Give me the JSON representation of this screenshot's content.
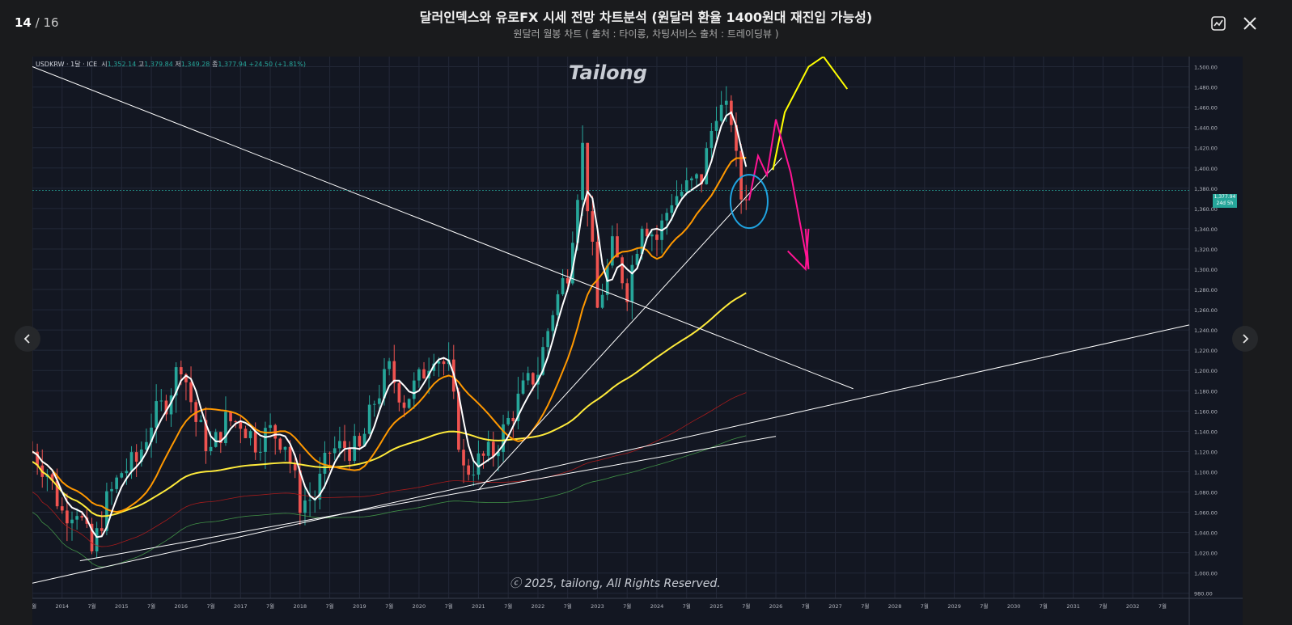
{
  "header": {
    "counter_current": "14",
    "counter_total": "/ 16",
    "title": "달러인덱스와 유로FX 시세 전망 차트분석 (원달러 환율 1400원대 재진입 가능성)",
    "subtitle": "원달러 월봉 차트 ( 출처 : 타이롱, 차팅서비스 출처 : 트레이딩뷰 )"
  },
  "icons": {
    "chart": "chart-image-icon",
    "close": "close-icon",
    "prev": "chevron-left-icon",
    "next": "chevron-right-icon"
  },
  "chart": {
    "symbol": "USDKRW · 1달 · ICE",
    "ohlc": {
      "o_label": "시",
      "o": "1,352.14",
      "h_label": "고",
      "h": "1,379.84",
      "l_label": "저",
      "l": "1,349.28",
      "c_label": "종",
      "c": "1,377.94",
      "change": "+24.50 (+1.81%)"
    },
    "watermark": "Tailong",
    "copyright": "ⓒ 2025, tailong, All Rights Reserved.",
    "last_price": "1,377.94",
    "countdown": "24d 5h",
    "colors": {
      "background": "#131722",
      "up": "#26a69a",
      "down": "#ef5350",
      "ma_fast": "#ffffff",
      "ma_mid": "#ff9800",
      "ma_slow": "#ffeb3b",
      "ma_red": "#b71c1c",
      "ma_green": "#4caf50",
      "projection_up": "#ffff00",
      "projection_down": "#ff1493",
      "highlight": "#1fa3e0"
    }
  },
  "chart_data": {
    "type": "candlestick",
    "y_ticks": [
      "1,500.00",
      "1,480.00",
      "1,460.00",
      "1,440.00",
      "1,420.00",
      "1,400.00",
      "1,380.00",
      "1,360.00",
      "1,340.00",
      "1,320.00",
      "1,300.00",
      "1,280.00",
      "1,260.00",
      "1,240.00",
      "1,220.00",
      "1,200.00",
      "1,180.00",
      "1,160.00",
      "1,140.00",
      "1,120.00",
      "1,100.00",
      "1,080.00",
      "1,060.00",
      "1,040.00",
      "1,020.00",
      "1,000.00",
      "980.00"
    ],
    "x_ticks": [
      {
        "t": 2013.5,
        "label": "7월"
      },
      {
        "t": 2014,
        "label": "2014"
      },
      {
        "t": 2014.5,
        "label": "7월"
      },
      {
        "t": 2015,
        "label": "2015"
      },
      {
        "t": 2015.5,
        "label": "7월"
      },
      {
        "t": 2016,
        "label": "2016"
      },
      {
        "t": 2016.5,
        "label": "7월"
      },
      {
        "t": 2017,
        "label": "2017"
      },
      {
        "t": 2017.5,
        "label": "7월"
      },
      {
        "t": 2018,
        "label": "2018"
      },
      {
        "t": 2018.5,
        "label": "7월"
      },
      {
        "t": 2019,
        "label": "2019"
      },
      {
        "t": 2019.5,
        "label": "7월"
      },
      {
        "t": 2020,
        "label": "2020"
      },
      {
        "t": 2020.5,
        "label": "7월"
      },
      {
        "t": 2021,
        "label": "2021"
      },
      {
        "t": 2021.5,
        "label": "7월"
      },
      {
        "t": 2022,
        "label": "2022"
      },
      {
        "t": 2022.5,
        "label": "7월"
      },
      {
        "t": 2023,
        "label": "2023"
      },
      {
        "t": 2023.5,
        "label": "7월"
      },
      {
        "t": 2024,
        "label": "2024"
      },
      {
        "t": 2024.5,
        "label": "7월"
      },
      {
        "t": 2025,
        "label": "2025"
      },
      {
        "t": 2025.5,
        "label": "7월"
      },
      {
        "t": 2026,
        "label": "2026"
      },
      {
        "t": 2026.5,
        "label": "7월"
      },
      {
        "t": 2027,
        "label": "2027"
      },
      {
        "t": 2027.5,
        "label": "7월"
      },
      {
        "t": 2028,
        "label": "2028"
      },
      {
        "t": 2028.5,
        "label": "7월"
      },
      {
        "t": 2029,
        "label": "2029"
      },
      {
        "t": 2029.5,
        "label": "7월"
      },
      {
        "t": 2030,
        "label": "2030"
      },
      {
        "t": 2030.5,
        "label": "7월"
      },
      {
        "t": 2031,
        "label": "2031"
      },
      {
        "t": 2031.5,
        "label": "7월"
      },
      {
        "t": 2032,
        "label": "2032"
      },
      {
        "t": 2032.5,
        "label": "7월"
      }
    ],
    "closes": [
      {
        "t": 2013.5,
        "c": 1120
      },
      {
        "t": 2013.75,
        "c": 1100
      },
      {
        "t": 2014,
        "c": 1060
      },
      {
        "t": 2014.25,
        "c": 1065
      },
      {
        "t": 2014.5,
        "c": 1020
      },
      {
        "t": 2014.75,
        "c": 1070
      },
      {
        "t": 2015,
        "c": 1100
      },
      {
        "t": 2015.25,
        "c": 1110
      },
      {
        "t": 2015.5,
        "c": 1150
      },
      {
        "t": 2015.75,
        "c": 1170
      },
      {
        "t": 2016,
        "c": 1210
      },
      {
        "t": 2016.25,
        "c": 1150
      },
      {
        "t": 2016.5,
        "c": 1120
      },
      {
        "t": 2016.75,
        "c": 1150
      },
      {
        "t": 2017,
        "c": 1150
      },
      {
        "t": 2017.25,
        "c": 1130
      },
      {
        "t": 2017.5,
        "c": 1140
      },
      {
        "t": 2017.75,
        "c": 1130
      },
      {
        "t": 2018,
        "c": 1070
      },
      {
        "t": 2018.25,
        "c": 1075
      },
      {
        "t": 2018.5,
        "c": 1120
      },
      {
        "t": 2018.75,
        "c": 1125
      },
      {
        "t": 2019,
        "c": 1120
      },
      {
        "t": 2019.25,
        "c": 1170
      },
      {
        "t": 2019.5,
        "c": 1200
      },
      {
        "t": 2019.75,
        "c": 1170
      },
      {
        "t": 2020,
        "c": 1190
      },
      {
        "t": 2020.25,
        "c": 1220
      },
      {
        "t": 2020.5,
        "c": 1200
      },
      {
        "t": 2020.75,
        "c": 1100
      },
      {
        "t": 2021,
        "c": 1110
      },
      {
        "t": 2021.25,
        "c": 1120
      },
      {
        "t": 2021.5,
        "c": 1150
      },
      {
        "t": 2021.75,
        "c": 1180
      },
      {
        "t": 2022,
        "c": 1200
      },
      {
        "t": 2022.25,
        "c": 1260
      },
      {
        "t": 2022.5,
        "c": 1300
      },
      {
        "t": 2022.75,
        "c": 1420
      },
      {
        "t": 2023,
        "c": 1260
      },
      {
        "t": 2023.25,
        "c": 1320
      },
      {
        "t": 2023.5,
        "c": 1280
      },
      {
        "t": 2023.75,
        "c": 1350
      },
      {
        "t": 2024,
        "c": 1330
      },
      {
        "t": 2024.25,
        "c": 1370
      },
      {
        "t": 2024.5,
        "c": 1380
      },
      {
        "t": 2024.75,
        "c": 1390
      },
      {
        "t": 2025,
        "c": 1460
      },
      {
        "t": 2025.25,
        "c": 1450
      },
      {
        "t": 2025.4,
        "c": 1370
      },
      {
        "t": 2025.5,
        "c": 1378
      }
    ],
    "y_range": [
      975,
      1510
    ],
    "x_range": [
      2013.5,
      2032.95
    ],
    "current_price": 1377.94
  }
}
